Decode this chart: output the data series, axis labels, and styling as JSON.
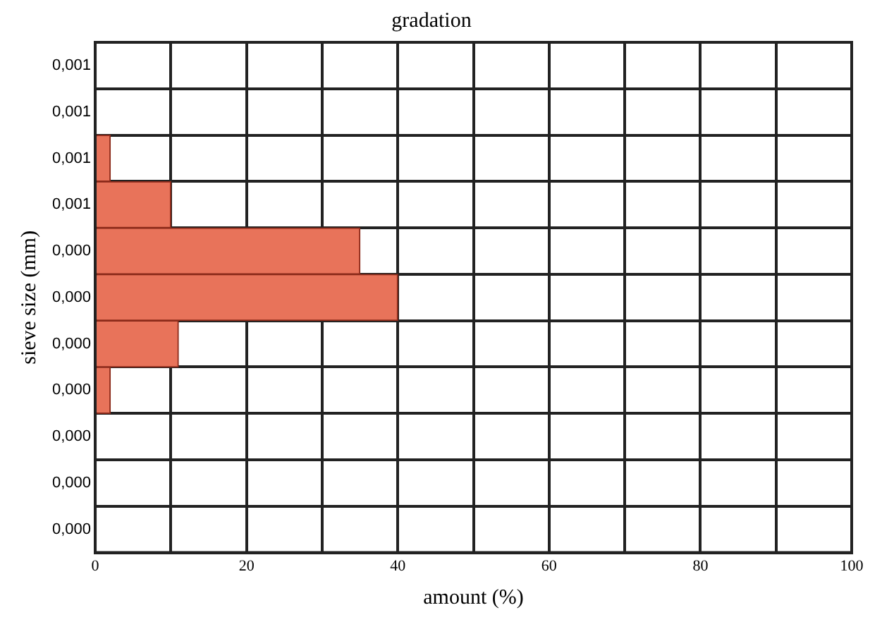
{
  "chart_data": {
    "type": "bar",
    "orientation": "horizontal",
    "title": "gradation",
    "xlabel": "amount (%)",
    "ylabel": "sieve size (mm)",
    "categories": [
      "0,001",
      "0,001",
      "0,001",
      "0,001",
      "0,000",
      "0,000",
      "0,000",
      "0,000",
      "0,000",
      "0,000",
      "0,000"
    ],
    "values": [
      0,
      0,
      2,
      10,
      35,
      40,
      11,
      2,
      0,
      0,
      0
    ],
    "color": "#e8735a",
    "xlim": [
      0,
      100
    ],
    "xticks": [
      0,
      {
        "value": 10,
        "label": null
      },
      20,
      {
        "value": 30,
        "label": null
      },
      40,
      {
        "value": 50,
        "label": null
      },
      60,
      {
        "value": 70,
        "label": null
      },
      80,
      {
        "value": 90,
        "label": null
      },
      100
    ],
    "grid": true,
    "legend": false
  }
}
